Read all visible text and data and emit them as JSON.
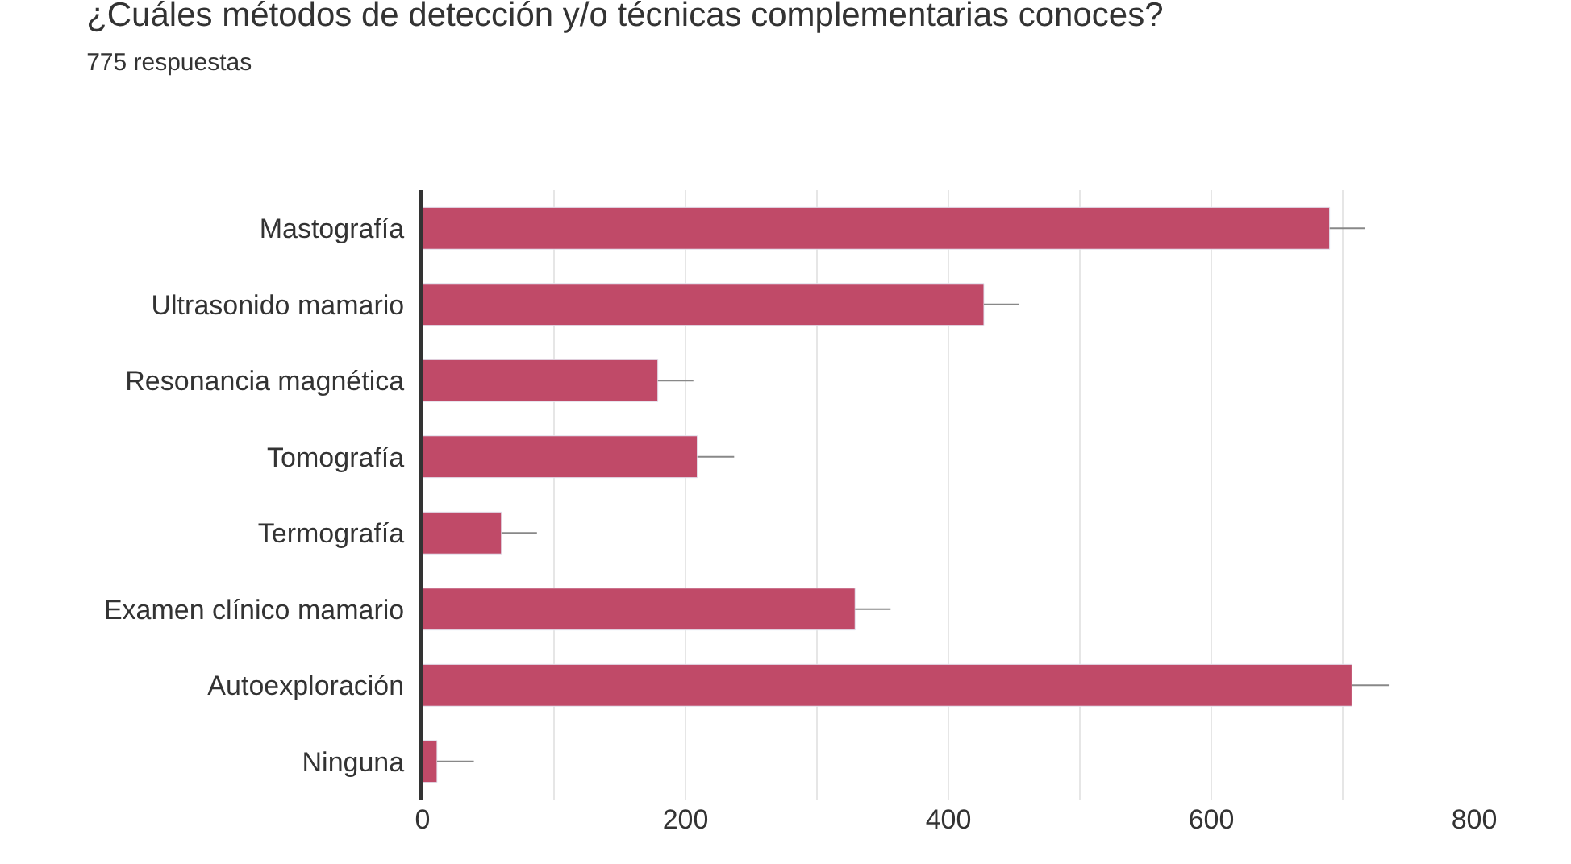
{
  "chart_data": {
    "type": "bar",
    "orientation": "horizontal",
    "title": "¿Cuáles métodos de detección y/o técnicas complementarias conoces?",
    "subtitle": "775 respuestas",
    "categories": [
      "Mastografía",
      "Ultrasonido mamario",
      "Resonancia magnética",
      "Tomografía",
      "Termografía",
      "Examen clínico mamario",
      "Autoexploración",
      "Ninguna"
    ],
    "values": [
      690,
      427,
      179,
      209,
      60,
      329,
      707,
      11
    ],
    "errors": [
      [
        690,
        717
      ],
      [
        427,
        454
      ],
      [
        179,
        206
      ],
      [
        209,
        237
      ],
      [
        60,
        87
      ],
      [
        329,
        356
      ],
      [
        707,
        735
      ],
      [
        11,
        39
      ]
    ],
    "color": "#c04a68",
    "xlim": [
      0,
      800
    ],
    "xticks": [
      0,
      {
        "value": 100,
        "label": null
      },
      200,
      {
        "value": 300,
        "label": null
      },
      400,
      {
        "value": 500,
        "label": null
      },
      600,
      {
        "value": 700,
        "label": null
      },
      800
    ],
    "grid": "x",
    "legend": false
  }
}
